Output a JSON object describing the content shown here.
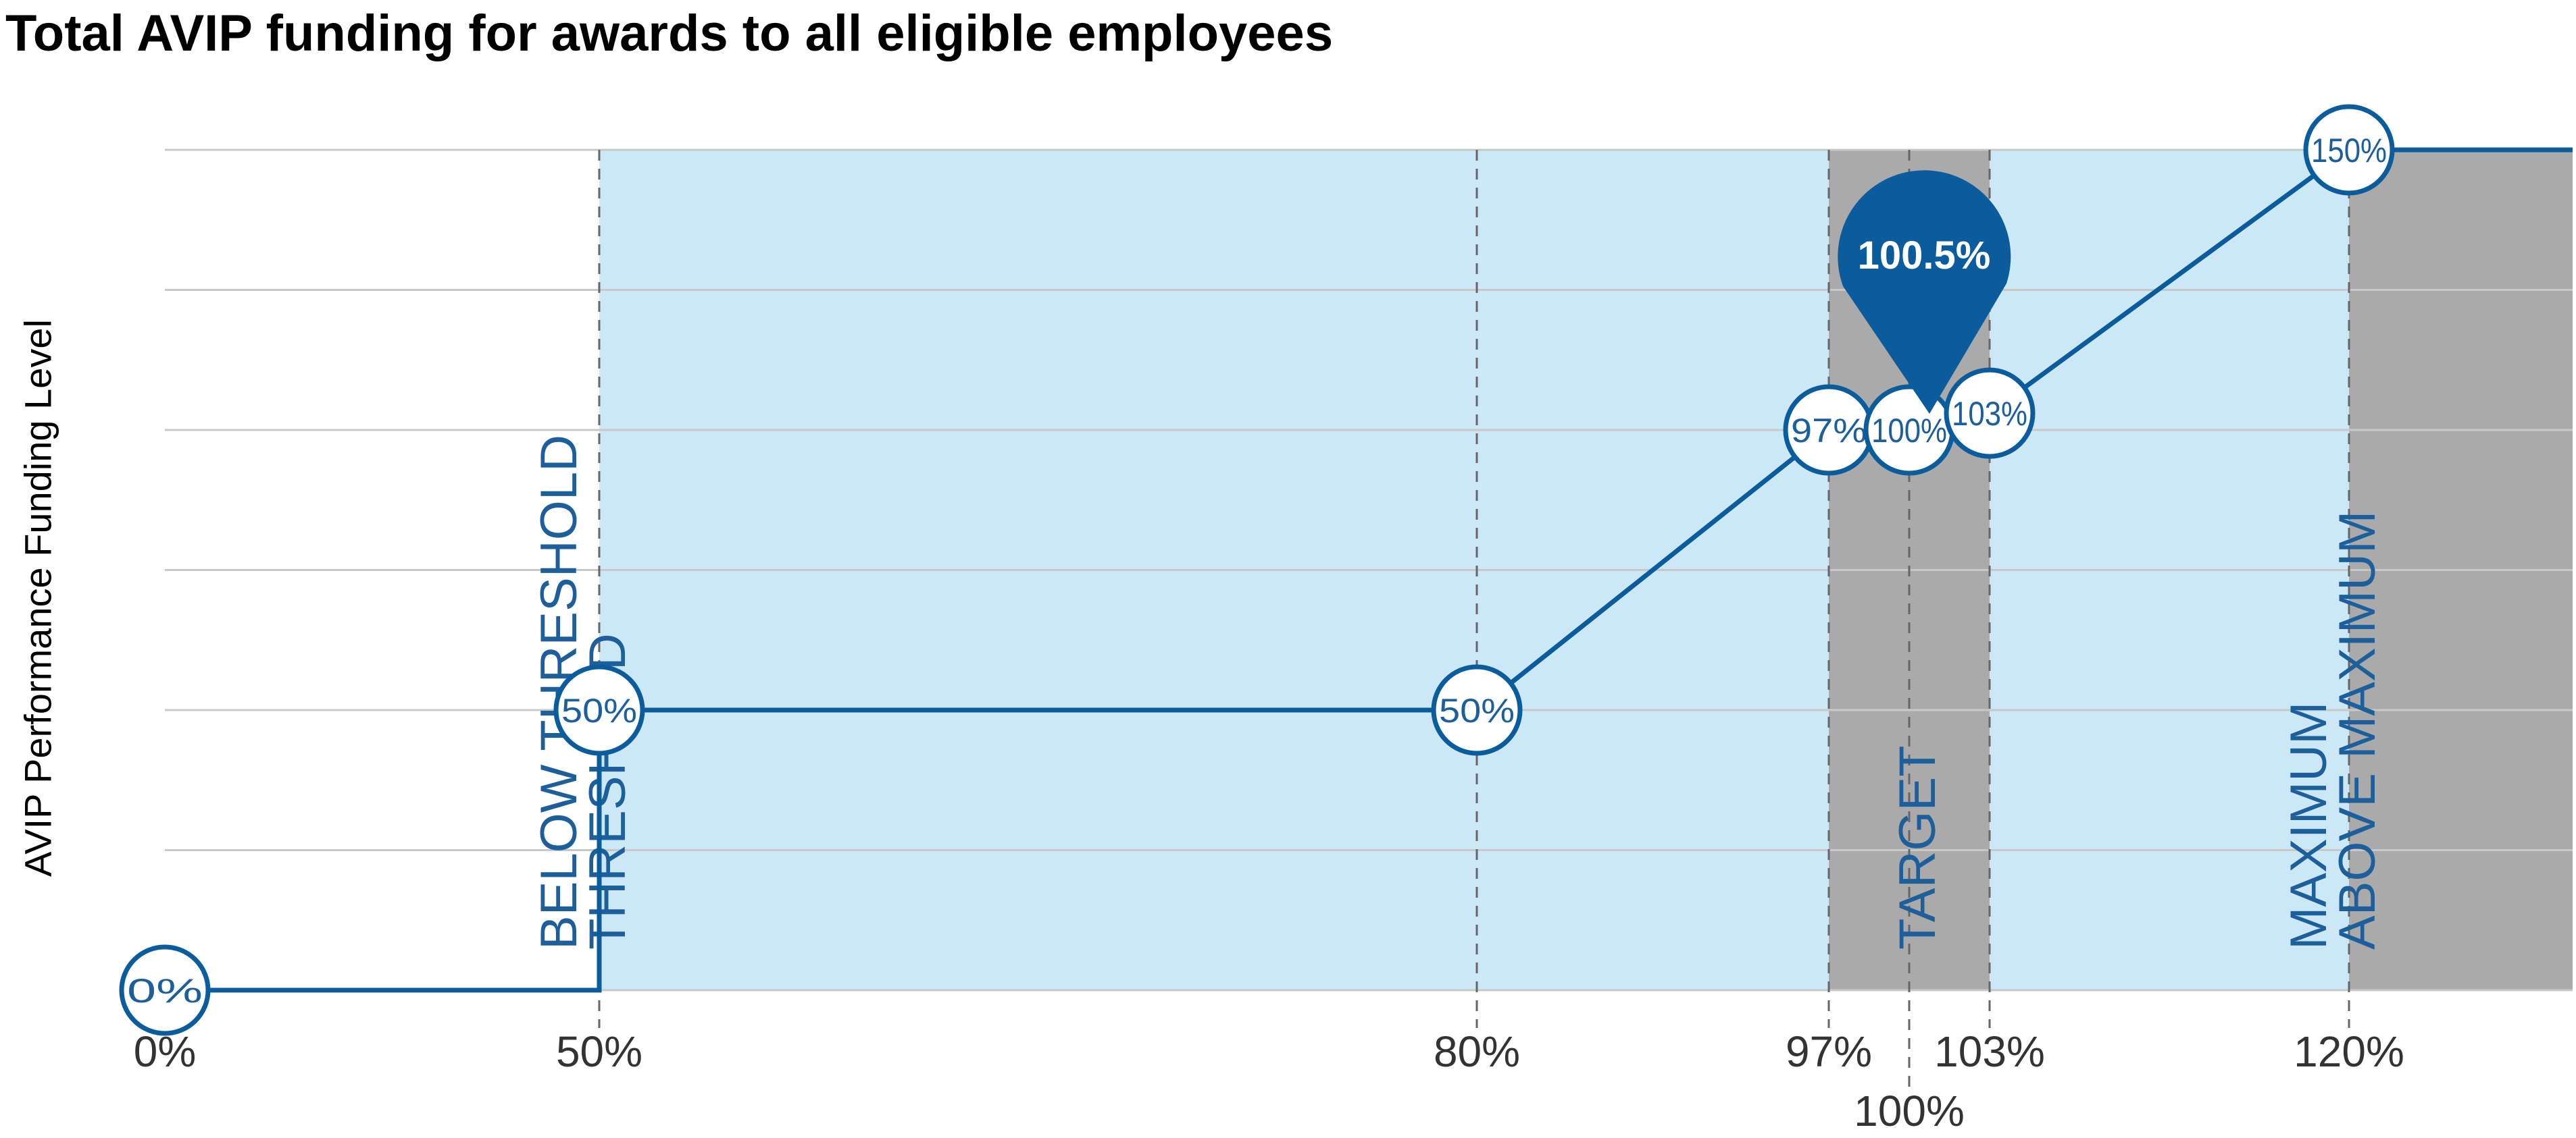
{
  "theme": {
    "accent": "#0b5c9c",
    "text": "#1d5f9a",
    "light_band": "#cce8f6",
    "grey_band": "#aaaaaa",
    "grid": "#c8c8c8",
    "tick_text": "#333333"
  },
  "chart_data": {
    "type": "line",
    "title": "Total AVIP funding for awards to all eligible employees",
    "xlabel": "",
    "ylabel": "AVIP Performance Funding Level",
    "xlim": [
      0,
      130
    ],
    "ylim": [
      0,
      150
    ],
    "grid": "horizontal",
    "x_ticks": [
      {
        "value": 0,
        "label": "0%"
      },
      {
        "value": 50,
        "label": "50%"
      },
      {
        "value": 80,
        "label": "80%"
      },
      {
        "value": 97,
        "label": "97%"
      },
      {
        "value": 100,
        "label": "100%"
      },
      {
        "value": 103,
        "label": "103%"
      },
      {
        "value": 120,
        "label": "120%"
      }
    ],
    "series": [
      {
        "points": [
          {
            "x": 0,
            "y": 0,
            "label": "0%"
          },
          {
            "x": 50,
            "y": 0
          },
          {
            "x": 50,
            "y": 50,
            "label": "50%"
          },
          {
            "x": 80,
            "y": 50,
            "label": "50%"
          },
          {
            "x": 97,
            "y": 100,
            "label": "97%"
          },
          {
            "x": 100,
            "y": 100,
            "label": "100%"
          },
          {
            "x": 103,
            "y": 103,
            "label": "103%"
          },
          {
            "x": 120,
            "y": 150,
            "label": "150%"
          },
          {
            "x": 130,
            "y": 150
          }
        ]
      }
    ],
    "highlight": {
      "x": 100,
      "y": 100,
      "label": "100.5%"
    },
    "zones": [
      {
        "label": "BELOW THRESHOLD",
        "edge": 50,
        "side": "left",
        "from": 0,
        "to": 50,
        "shade": "none"
      },
      {
        "label": "THRESHOLD",
        "edge": 50,
        "side": "right",
        "from": 50,
        "to": 97,
        "shade": "light"
      },
      {
        "label": "TARGET",
        "edge": 100,
        "side": "right",
        "from": 97,
        "to": 103,
        "shade": "grey"
      },
      {
        "label": "MAXIMUM",
        "edge": 120,
        "side": "left",
        "from": 103,
        "to": 120,
        "shade": "light"
      },
      {
        "label": "ABOVE MAXIMUM",
        "edge": 120,
        "side": "right",
        "from": 120,
        "to": 130,
        "shade": "grey"
      }
    ]
  }
}
